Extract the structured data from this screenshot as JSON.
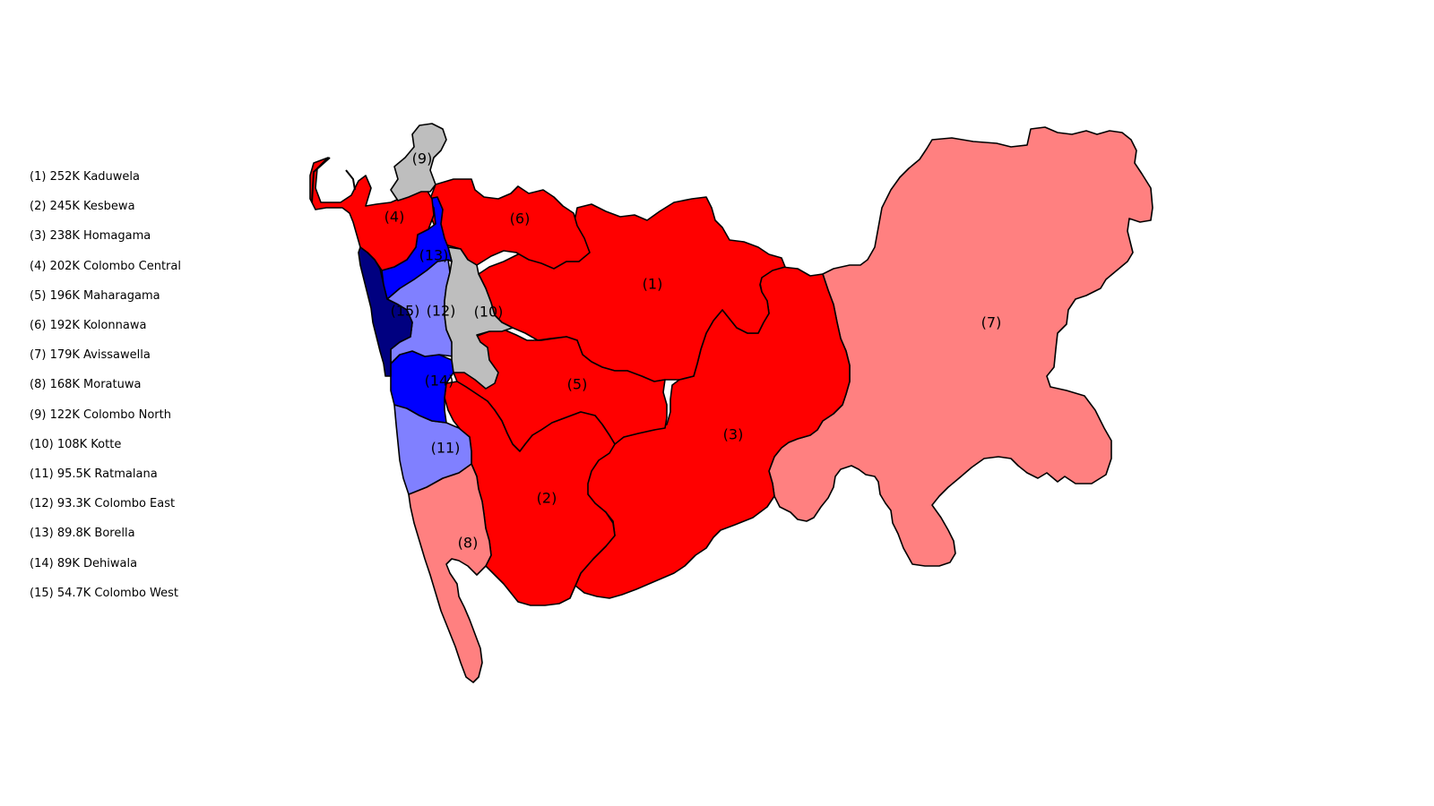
{
  "colors": {
    "strong_red": "#ff0000",
    "light_red": "#ff8080",
    "grey": "#bebebe",
    "blue": "#0000ff",
    "light_blue": "#8080ff",
    "navy": "#000080"
  },
  "legend": [
    {
      "num": "(1)",
      "text": "252K Kaduwela"
    },
    {
      "num": "(2)",
      "text": "245K Kesbewa"
    },
    {
      "num": "(3)",
      "text": "238K Homagama"
    },
    {
      "num": "(4)",
      "text": "202K Colombo Central"
    },
    {
      "num": "(5)",
      "text": "196K Maharagama"
    },
    {
      "num": "(6)",
      "text": "192K Kolonnawa"
    },
    {
      "num": "(7)",
      "text": "179K Avissawella"
    },
    {
      "num": "(8)",
      "text": "168K Moratuwa"
    },
    {
      "num": "(9)",
      "text": "122K Colombo North"
    },
    {
      "num": "(10)",
      "text": "108K Kotte"
    },
    {
      "num": "(11)",
      "text": "95.5K Ratmalana"
    },
    {
      "num": "(12)",
      "text": "93.3K Colombo East"
    },
    {
      "num": "(13)",
      "text": "89.8K Borella"
    },
    {
      "num": "(14)",
      "text": "89K Dehiwala"
    },
    {
      "num": "(15)",
      "text": "54.7K Colombo West"
    }
  ],
  "map_labels": {
    "r1": "(1)",
    "r2": "(2)",
    "r3": "(3)",
    "r4": "(4)",
    "r5": "(5)",
    "r6": "(6)",
    "r7": "(7)",
    "r8": "(8)",
    "r9": "(9)",
    "r10": "(10)",
    "r11": "(11)",
    "r12": "(12)",
    "r13": "(13)",
    "r14": "(14)",
    "r15": "(15)"
  }
}
